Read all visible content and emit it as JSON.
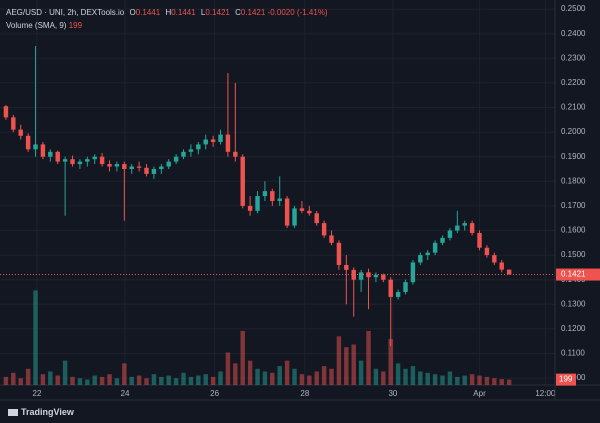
{
  "chart_data": {
    "type": "candlestick",
    "title": "AEG/USD · UNI, 2h, DEXTools.io",
    "ohlc_labels": [
      "O",
      "H",
      "L",
      "C"
    ],
    "change": "-0.0020 (-1.41%)",
    "volume_title": "Volume (SMA, 9)",
    "volume_sma": 199,
    "brand": "TradingView",
    "up_color": "#26a69a",
    "down_color": "#ef5350",
    "open": [
      0.2105,
      0.206,
      0.201,
      0.1985,
      0.193,
      0.195,
      0.19,
      0.192,
      0.188,
      0.189,
      0.187,
      0.188,
      0.189,
      0.19,
      0.187,
      0.186,
      0.187,
      0.185,
      0.186,
      0.1855,
      0.183,
      0.185,
      0.186,
      0.188,
      0.19,
      0.192,
      0.193,
      0.195,
      0.197,
      0.196,
      0.199,
      0.192,
      0.19,
      0.17,
      0.168,
      0.174,
      0.176,
      0.172,
      0.173,
      0.162,
      0.169,
      0.168,
      0.167,
      0.163,
      0.158,
      0.155,
      0.146,
      0.144,
      0.14,
      0.143,
      0.141,
      0.142,
      0.14,
      0.133,
      0.135,
      0.139,
      0.147,
      0.15,
      0.151,
      0.155,
      0.157,
      0.16,
      0.162,
      0.163,
      0.159,
      0.153,
      0.15,
      0.147,
      0.1441
    ],
    "high": [
      0.211,
      0.207,
      0.203,
      0.1995,
      0.235,
      0.196,
      0.193,
      0.1925,
      0.19,
      0.1905,
      0.189,
      0.19,
      0.191,
      0.1915,
      0.1885,
      0.188,
      0.188,
      0.187,
      0.188,
      0.187,
      0.186,
      0.187,
      0.189,
      0.191,
      0.193,
      0.195,
      0.196,
      0.199,
      0.1985,
      0.201,
      0.224,
      0.22,
      0.191,
      0.174,
      0.176,
      0.18,
      0.177,
      0.182,
      0.174,
      0.17,
      0.172,
      0.17,
      0.168,
      0.164,
      0.16,
      0.156,
      0.15,
      0.145,
      0.144,
      0.1445,
      0.143,
      0.1425,
      0.141,
      0.136,
      0.14,
      0.148,
      0.151,
      0.152,
      0.156,
      0.158,
      0.161,
      0.168,
      0.164,
      0.164,
      0.16,
      0.154,
      0.151,
      0.148,
      0.1441
    ],
    "low": [
      0.205,
      0.2,
      0.197,
      0.192,
      0.19,
      0.189,
      0.188,
      0.187,
      0.166,
      0.186,
      0.185,
      0.186,
      0.187,
      0.186,
      0.184,
      0.184,
      0.164,
      0.183,
      0.184,
      0.182,
      0.181,
      0.183,
      0.185,
      0.187,
      0.189,
      0.19,
      0.191,
      0.193,
      0.194,
      0.195,
      0.19,
      0.188,
      0.169,
      0.166,
      0.167,
      0.172,
      0.17,
      0.17,
      0.161,
      0.161,
      0.167,
      0.166,
      0.162,
      0.157,
      0.154,
      0.144,
      0.13,
      0.125,
      0.135,
      0.128,
      0.139,
      0.139,
      0.113,
      0.132,
      0.134,
      0.138,
      0.146,
      0.148,
      0.15,
      0.154,
      0.156,
      0.159,
      0.16,
      0.158,
      0.152,
      0.149,
      0.146,
      0.143,
      0.1421
    ],
    "close": [
      0.206,
      0.201,
      0.1985,
      0.193,
      0.195,
      0.19,
      0.192,
      0.188,
      0.189,
      0.187,
      0.188,
      0.189,
      0.19,
      0.187,
      0.186,
      0.187,
      0.185,
      0.186,
      0.1855,
      0.183,
      0.185,
      0.186,
      0.188,
      0.19,
      0.192,
      0.193,
      0.195,
      0.197,
      0.196,
      0.199,
      0.192,
      0.19,
      0.17,
      0.168,
      0.174,
      0.176,
      0.172,
      0.173,
      0.162,
      0.169,
      0.168,
      0.167,
      0.163,
      0.158,
      0.155,
      0.146,
      0.144,
      0.14,
      0.143,
      0.141,
      0.142,
      0.14,
      0.133,
      0.135,
      0.139,
      0.147,
      0.15,
      0.151,
      0.155,
      0.157,
      0.16,
      0.162,
      0.163,
      0.159,
      0.153,
      0.15,
      0.147,
      0.1441,
      0.1421
    ],
    "volume": [
      300,
      450,
      250,
      600,
      3500,
      400,
      500,
      350,
      900,
      300,
      250,
      200,
      350,
      300,
      400,
      250,
      800,
      300,
      350,
      250,
      400,
      300,
      350,
      250,
      450,
      300,
      350,
      400,
      300,
      500,
      1200,
      800,
      2000,
      900,
      600,
      500,
      450,
      700,
      900,
      600,
      400,
      350,
      500,
      700,
      600,
      1800,
      1400,
      1500,
      900,
      2000,
      600,
      500,
      1700,
      800,
      600,
      700,
      500,
      450,
      400,
      350,
      500,
      300,
      350,
      400,
      350,
      300,
      250,
      220,
      199
    ],
    "volume_lim": [
      0,
      3700
    ],
    "xlim": [
      -0.8,
      74.2
    ],
    "xticks": [
      {
        "value": 4.2,
        "label": "22"
      },
      {
        "value": 16.1,
        "label": "24"
      },
      {
        "value": 28.2,
        "label": "26"
      },
      {
        "value": 40.4,
        "label": "28"
      },
      {
        "value": 52.3,
        "label": "30"
      },
      {
        "value": 64,
        "label": "Apr"
      },
      {
        "value": 72.9,
        "label": "12:00"
      }
    ],
    "ylim": [
      0.0972,
      0.2537
    ],
    "yticks": [
      {
        "value": 0.1,
        "label": "0.1000"
      },
      {
        "value": 0.11,
        "label": "0.1100"
      },
      {
        "value": 0.12,
        "label": "0.1200"
      },
      {
        "value": 0.13,
        "label": "0.1300"
      },
      {
        "value": 0.14,
        "label": "0.1400"
      },
      {
        "value": 0.15,
        "label": "0.1500"
      },
      {
        "value": 0.16,
        "label": "0.1600"
      },
      {
        "value": 0.17,
        "label": "0.1700"
      },
      {
        "value": 0.18,
        "label": "0.1800"
      },
      {
        "value": 0.19,
        "label": "0.1900"
      },
      {
        "value": 0.2,
        "label": "0.2000"
      },
      {
        "value": 0.21,
        "label": "0.2100"
      },
      {
        "value": 0.22,
        "label": "0.2200"
      },
      {
        "value": 0.23,
        "label": "0.2300"
      },
      {
        "value": 0.24,
        "label": "0.2400"
      },
      {
        "value": 0.25,
        "label": "0.2500"
      }
    ],
    "grid": true
  }
}
